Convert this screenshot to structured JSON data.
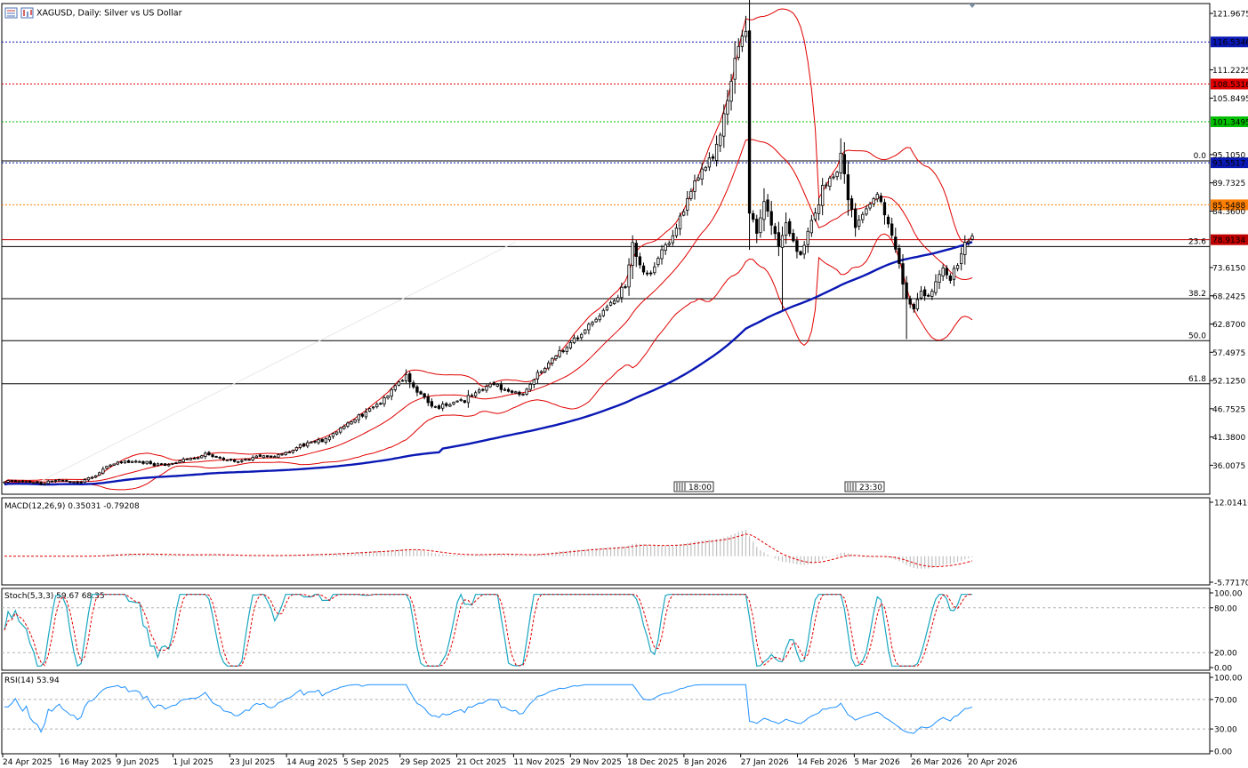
{
  "window": {
    "title": "XAGUSD, Daily:  Silver vs US Dollar",
    "icon_names": [
      "chart-window-icon",
      "bars-icon"
    ]
  },
  "colors": {
    "bull": "#ffffff",
    "bear": "#000000",
    "bollinger": "#e00000",
    "ma": "#0a18b4",
    "hline_blue": "#0a18b4",
    "hline_red": "#e00000",
    "hline_green": "#00c000",
    "hline_orange": "#ff8000",
    "hline_darkred": "#c00000",
    "macd_hist": "#c0c0c0",
    "macd_signal": "#e00000",
    "stoch_main": "#1aa6c0",
    "stoch_signal": "#e00000",
    "rsi": "#1e90ff"
  },
  "chart_data": [
    {
      "type": "candlestick",
      "symbol": "XAGUSD",
      "title": "XAGUSD, Daily:  Silver vs US Dollar",
      "timeframe": "Daily",
      "y_ticks": [
        "121.9675",
        "116.5346",
        "111.2225",
        "108.5316",
        "105.8495",
        "101.3495",
        "95.1050",
        "93.5517",
        "89.7325",
        "85.5488",
        "84.3600",
        "78.9134",
        "73.6150",
        "68.2425",
        "62.8700",
        "57.4975",
        "52.1250",
        "46.7525",
        "41.3800",
        "36.0075"
      ],
      "ylim": [
        31.0,
        123.5
      ],
      "x_ticks": [
        "24 Apr 2025",
        "16 May 2025",
        "9 Jun 2025",
        "1 Jul 2025",
        "23 Jul 2025",
        "14 Aug 2025",
        "5 Sep 2025",
        "29 Sep 2025",
        "21 Oct 2025",
        "11 Nov 2025",
        "29 Nov 2025",
        "18 Dec 2025",
        "8 Jan 2026",
        "27 Jan 2026",
        "14 Feb 2026",
        "5 Mar 2026",
        "26 Mar 2026",
        "20 Apr 2026"
      ],
      "price_levels": [
        {
          "value": 116.5346,
          "label": "116.5346",
          "color": "#0a18b4",
          "style": "dotted"
        },
        {
          "value": 108.5316,
          "label": "108.5316",
          "color": "#e00000",
          "style": "dotted"
        },
        {
          "value": 101.3495,
          "label": "101.3495",
          "color": "#00c000",
          "style": "dotted"
        },
        {
          "value": 93.5517,
          "label": "93.5517",
          "color": "#0a18b4",
          "style": "dotted"
        },
        {
          "value": 85.5488,
          "label": "85.5488",
          "color": "#ff8000",
          "style": "dotted"
        },
        {
          "value": 78.9134,
          "label": "78.9134",
          "color": "#c00000",
          "style": "solid"
        }
      ],
      "fibonacci": [
        {
          "level": "0.0",
          "value": 93.9
        },
        {
          "level": "23.6",
          "value": 77.6
        },
        {
          "level": "38.2",
          "value": 67.7
        },
        {
          "level": "50.0",
          "value": 59.7
        },
        {
          "level": "61.8",
          "value": 51.5
        }
      ],
      "session_markers": [
        "18:00",
        "23:30"
      ],
      "close_path": [
        [
          0,
          32.8
        ],
        [
          5,
          33.0
        ],
        [
          10,
          32.5
        ],
        [
          15,
          33.2
        ],
        [
          20,
          32.8
        ],
        [
          25,
          34.0
        ],
        [
          28,
          35.8
        ],
        [
          32,
          36.5
        ],
        [
          36,
          36.8
        ],
        [
          40,
          36.2
        ],
        [
          44,
          36.0
        ],
        [
          48,
          36.8
        ],
        [
          52,
          37.5
        ],
        [
          55,
          38.2
        ],
        [
          58,
          37.5
        ],
        [
          62,
          36.8
        ],
        [
          66,
          37.0
        ],
        [
          70,
          37.8
        ],
        [
          74,
          37.5
        ],
        [
          78,
          38.5
        ],
        [
          82,
          40.0
        ],
        [
          86,
          40.5
        ],
        [
          90,
          42.0
        ],
        [
          94,
          44.0
        ],
        [
          98,
          45.5
        ],
        [
          102,
          47.5
        ],
        [
          106,
          50.0
        ],
        [
          110,
          53.0
        ],
        [
          112,
          51.0
        ],
        [
          115,
          48.5
        ],
        [
          118,
          47.0
        ],
        [
          122,
          48.0
        ],
        [
          126,
          48.5
        ],
        [
          130,
          50.5
        ],
        [
          134,
          51.5
        ],
        [
          138,
          50.0
        ],
        [
          142,
          49.5
        ],
        [
          146,
          53.0
        ],
        [
          150,
          56.5
        ],
        [
          154,
          58.5
        ],
        [
          158,
          61.0
        ],
        [
          162,
          64.0
        ],
        [
          166,
          67.0
        ],
        [
          170,
          70.0
        ],
        [
          172,
          78.0
        ],
        [
          174,
          74.0
        ],
        [
          177,
          72.0
        ],
        [
          180,
          77.0
        ],
        [
          183,
          79.0
        ],
        [
          186,
          85.0
        ],
        [
          189,
          90.0
        ],
        [
          192,
          93.0
        ],
        [
          195,
          96.0
        ],
        [
          198,
          105.0
        ],
        [
          200,
          113.0
        ],
        [
          202,
          117.5
        ],
        [
          203,
          118.0
        ],
        [
          204,
          84.0
        ],
        [
          206,
          80.0
        ],
        [
          208,
          86.0
        ],
        [
          210,
          82.0
        ],
        [
          212,
          78.0
        ],
        [
          214,
          82.0
        ],
        [
          216,
          78.0
        ],
        [
          218,
          76.0
        ],
        [
          220,
          80.0
        ],
        [
          222,
          84.0
        ],
        [
          224,
          89.0
        ],
        [
          226,
          90.0
        ],
        [
          228,
          92.0
        ],
        [
          229,
          95.0
        ],
        [
          231,
          86.0
        ],
        [
          233,
          82.0
        ],
        [
          235,
          84.0
        ],
        [
          237,
          86.0
        ],
        [
          239,
          88.0
        ],
        [
          241,
          84.0
        ],
        [
          243,
          80.0
        ],
        [
          245,
          74.0
        ],
        [
          247,
          68.0
        ],
        [
          249,
          66.0
        ],
        [
          251,
          69.0
        ],
        [
          253,
          68.0
        ],
        [
          255,
          71.0
        ],
        [
          257,
          73.0
        ],
        [
          259,
          72.0
        ],
        [
          261,
          75.0
        ],
        [
          263,
          78.0
        ],
        [
          265,
          80.0
        ],
        [
          266,
          79.6
        ]
      ],
      "bars_shown": 266,
      "overlays": [
        {
          "name": "Bollinger Bands",
          "color": "#e00000"
        },
        {
          "name": "Moving Average",
          "color": "#0a18b4"
        }
      ]
    },
    {
      "type": "histogram",
      "indicator": "MACD",
      "label": "MACD(12,26,9) 0.35031 -0.79208",
      "y_ticks": [
        "12.01416",
        "-5.77170"
      ],
      "ylim": [
        -5.7717,
        12.01416
      ]
    },
    {
      "type": "line",
      "indicator": "Stochastic",
      "label": "Stoch(5,3,3) 59.67 68.35",
      "y_ticks": [
        "100.00",
        "80.00",
        "20.00",
        "0.00"
      ],
      "ylim": [
        0,
        100
      ],
      "levels": [
        80,
        20
      ]
    },
    {
      "type": "line",
      "indicator": "RSI",
      "label": "RSI(14) 53.94",
      "y_ticks": [
        "100.00",
        "70.00",
        "30.00",
        "0.00"
      ],
      "ylim": [
        0,
        100
      ],
      "levels": [
        70,
        30
      ]
    }
  ]
}
